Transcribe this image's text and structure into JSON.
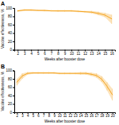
{
  "chart_data": [
    {
      "type": "line",
      "title": "A",
      "xlabel": "Weeks after booster dose",
      "ylabel": "Vaccine effectiveness, %",
      "x": [
        2,
        3,
        4,
        5,
        6,
        7,
        8,
        9,
        10,
        11,
        12,
        13,
        14,
        15,
        16
      ],
      "values": [
        93,
        95,
        95,
        94,
        94,
        93,
        93,
        93,
        93,
        92,
        91,
        90,
        87,
        83,
        74
      ],
      "ci_lo": [
        91,
        93,
        93,
        93,
        92,
        92,
        91,
        91,
        91,
        90,
        89,
        87,
        83,
        78,
        62
      ],
      "ci_hi": [
        95,
        97,
        97,
        96,
        96,
        95,
        95,
        95,
        95,
        94,
        93,
        93,
        91,
        88,
        84
      ],
      "color": "#F5A623",
      "xlim": [
        1.5,
        16.5
      ],
      "xticks": [
        2,
        3,
        4,
        5,
        6,
        7,
        8,
        9,
        10,
        11,
        12,
        13,
        14,
        15,
        16
      ],
      "ylim": [
        0,
        100
      ],
      "yticks": [
        0,
        20,
        40,
        60,
        80,
        100
      ],
      "grid": false
    },
    {
      "type": "line",
      "title": "B",
      "xlabel": "Weeks after booster dose",
      "ylabel": "Vaccine effectiveness, %",
      "x": [
        2,
        3,
        4,
        5,
        6,
        7,
        8,
        9,
        10,
        11,
        12,
        13,
        14,
        15,
        16,
        17,
        18,
        19,
        20
      ],
      "values": [
        72,
        87,
        93,
        94,
        94,
        94,
        94,
        94,
        93,
        93,
        93,
        93,
        93,
        93,
        91,
        88,
        79,
        62,
        42
      ],
      "ci_lo": [
        64,
        80,
        90,
        92,
        92,
        92,
        92,
        92,
        91,
        91,
        91,
        91,
        90,
        90,
        87,
        83,
        72,
        52,
        28
      ],
      "ci_hi": [
        80,
        93,
        96,
        96,
        96,
        96,
        96,
        96,
        95,
        95,
        95,
        95,
        96,
        96,
        95,
        93,
        86,
        72,
        56
      ],
      "color": "#F5A623",
      "xlim": [
        1.5,
        20.5
      ],
      "xticks": [
        2,
        3,
        4,
        5,
        6,
        7,
        8,
        9,
        10,
        11,
        12,
        13,
        14,
        15,
        16,
        17,
        18,
        19,
        20
      ],
      "ylim": [
        0,
        100
      ],
      "yticks": [
        0,
        20,
        40,
        60,
        80,
        100
      ],
      "grid": false
    }
  ]
}
